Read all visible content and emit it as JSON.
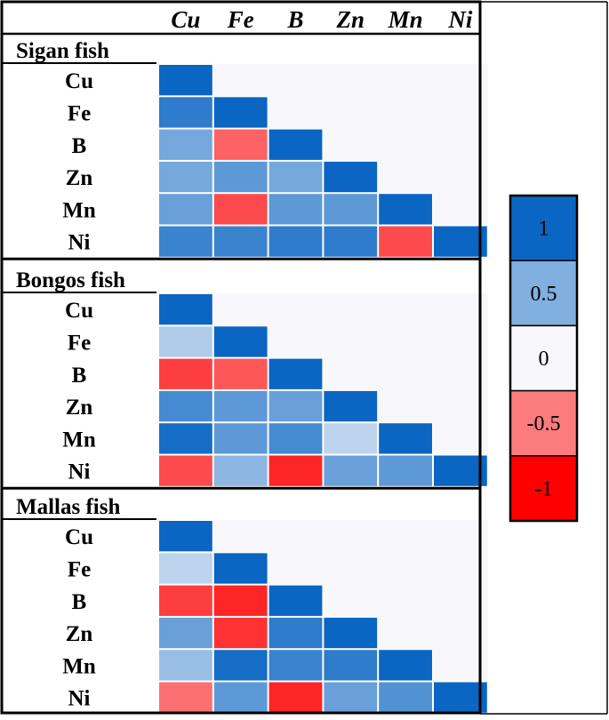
{
  "chart_data": {
    "type": "heatmap",
    "columns": [
      "Cu",
      "Fe",
      "B",
      "Zn",
      "Mn",
      "Ni"
    ],
    "rows": [
      "Cu",
      "Fe",
      "B",
      "Zn",
      "Mn",
      "Ni"
    ],
    "value_range": [
      -1,
      1
    ],
    "colors": {
      "positive": "#0a66c2",
      "neutral": "#f8f8fc",
      "negative": "#ff0000"
    },
    "groups": [
      {
        "title": "Sigan fish",
        "matrix": [
          [
            1.0
          ],
          [
            0.85,
            1.0
          ],
          [
            0.55,
            -0.6,
            1.0
          ],
          [
            0.55,
            0.65,
            0.55,
            1.0
          ],
          [
            0.6,
            -0.7,
            0.65,
            0.65,
            1.0
          ],
          [
            0.8,
            0.8,
            0.85,
            0.85,
            -0.7,
            1.0
          ]
        ]
      },
      {
        "title": "Bongos fish",
        "matrix": [
          [
            1.0
          ],
          [
            0.3,
            1.0
          ],
          [
            -0.75,
            -0.65,
            1.0
          ],
          [
            0.75,
            0.65,
            0.6,
            1.0
          ],
          [
            0.95,
            0.65,
            0.75,
            0.25,
            1.0
          ],
          [
            -0.7,
            0.45,
            -0.85,
            0.6,
            0.65,
            1.0
          ]
        ]
      },
      {
        "title": "Mallas fish",
        "matrix": [
          [
            1.0
          ],
          [
            0.25,
            1.0
          ],
          [
            -0.75,
            -0.85,
            1.0
          ],
          [
            0.6,
            -0.8,
            0.85,
            1.0
          ],
          [
            0.4,
            0.95,
            0.8,
            0.85,
            1.0
          ],
          [
            -0.55,
            0.65,
            -0.85,
            0.6,
            0.7,
            1.0
          ]
        ]
      }
    ],
    "legend": {
      "entries": [
        {
          "label": "1",
          "value": 1
        },
        {
          "label": "0.5",
          "value": 0.5
        },
        {
          "label": "0",
          "value": 0
        },
        {
          "label": "-0.5",
          "value": -0.5
        },
        {
          "label": "-1",
          "value": -1
        }
      ],
      "placement": "right"
    }
  }
}
